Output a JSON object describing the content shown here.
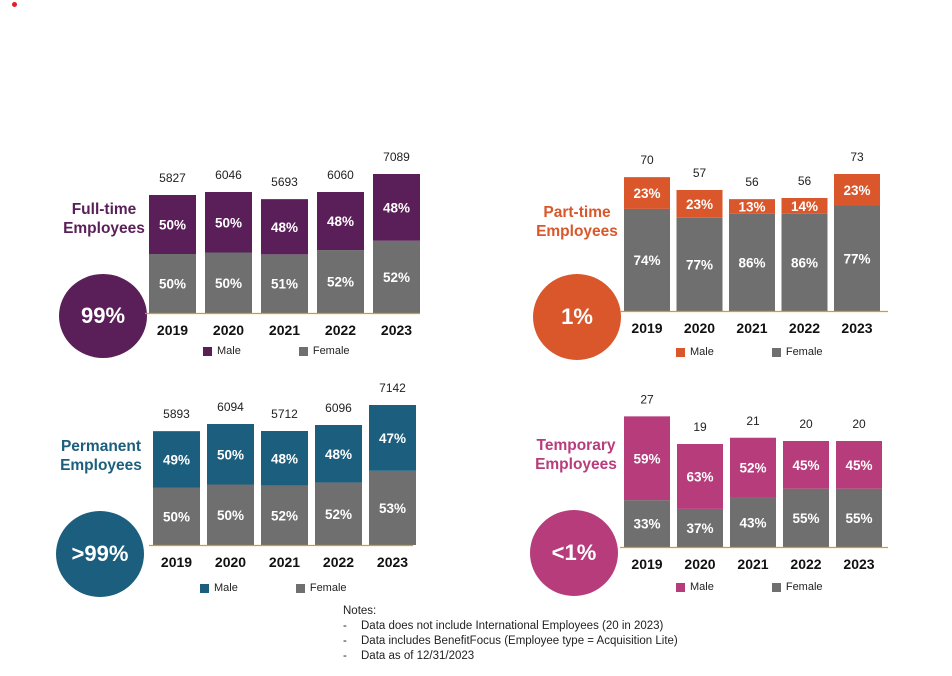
{
  "page": {
    "notes_title": "Notes:"
  },
  "notes": [
    "Data does not include International Employees (20 in 2023)",
    "Data includes BenefitFocus (Employee type = Acquisition Lite)",
    "Data as of 12/31/2023"
  ],
  "colors": {
    "female": "#6f6f6f",
    "axis": "#d4a017"
  },
  "legend": {
    "male": "Male",
    "female": "Female"
  },
  "chart_data": [
    {
      "type": "bar",
      "id": "fulltime",
      "title": "Full-time Employees",
      "title_lines": [
        "Full-time",
        "Employees"
      ],
      "share": "99%",
      "color": "#5a1f58",
      "categories": [
        "2019",
        "2020",
        "2021",
        "2022",
        "2023"
      ],
      "totals": [
        5827,
        6046,
        5693,
        6060,
        7089
      ],
      "series": [
        {
          "name": "Female",
          "values": [
            50,
            50,
            51,
            52,
            52
          ]
        },
        {
          "name": "Male",
          "values": [
            50,
            50,
            48,
            48,
            48
          ]
        }
      ]
    },
    {
      "type": "bar",
      "id": "parttime",
      "title": "Part-time Employees",
      "title_lines": [
        "Part-time",
        "Employees"
      ],
      "share": "1%",
      "color": "#d9572b",
      "categories": [
        "2019",
        "2020",
        "2021",
        "2022",
        "2023"
      ],
      "totals": [
        70,
        57,
        56,
        56,
        73
      ],
      "series": [
        {
          "name": "Female",
          "values": [
            74,
            77,
            86,
            86,
            77
          ]
        },
        {
          "name": "Male",
          "values": [
            23,
            23,
            13,
            14,
            23
          ]
        }
      ]
    },
    {
      "type": "bar",
      "id": "permanent",
      "title": "Permanent Employees",
      "title_lines": [
        "Permanent",
        "Employees"
      ],
      "share": ">99%",
      "color": "#1b5e7d",
      "categories": [
        "2019",
        "2020",
        "2021",
        "2022",
        "2023"
      ],
      "totals": [
        5893,
        6094,
        5712,
        6096,
        7142
      ],
      "series": [
        {
          "name": "Female",
          "values": [
            50,
            50,
            52,
            52,
            53
          ]
        },
        {
          "name": "Male",
          "values": [
            49,
            50,
            48,
            48,
            47
          ]
        }
      ]
    },
    {
      "type": "bar",
      "id": "temporary",
      "title": "Temporary Employees",
      "title_lines": [
        "Temporary",
        "Employees"
      ],
      "share": "<1%",
      "color": "#b73c7b",
      "categories": [
        "2019",
        "2020",
        "2021",
        "2022",
        "2023"
      ],
      "totals": [
        27,
        19,
        21,
        20,
        20
      ],
      "series": [
        {
          "name": "Female",
          "values": [
            33,
            37,
            43,
            55,
            55
          ]
        },
        {
          "name": "Male",
          "values": [
            59,
            63,
            52,
            45,
            45
          ]
        }
      ]
    }
  ]
}
